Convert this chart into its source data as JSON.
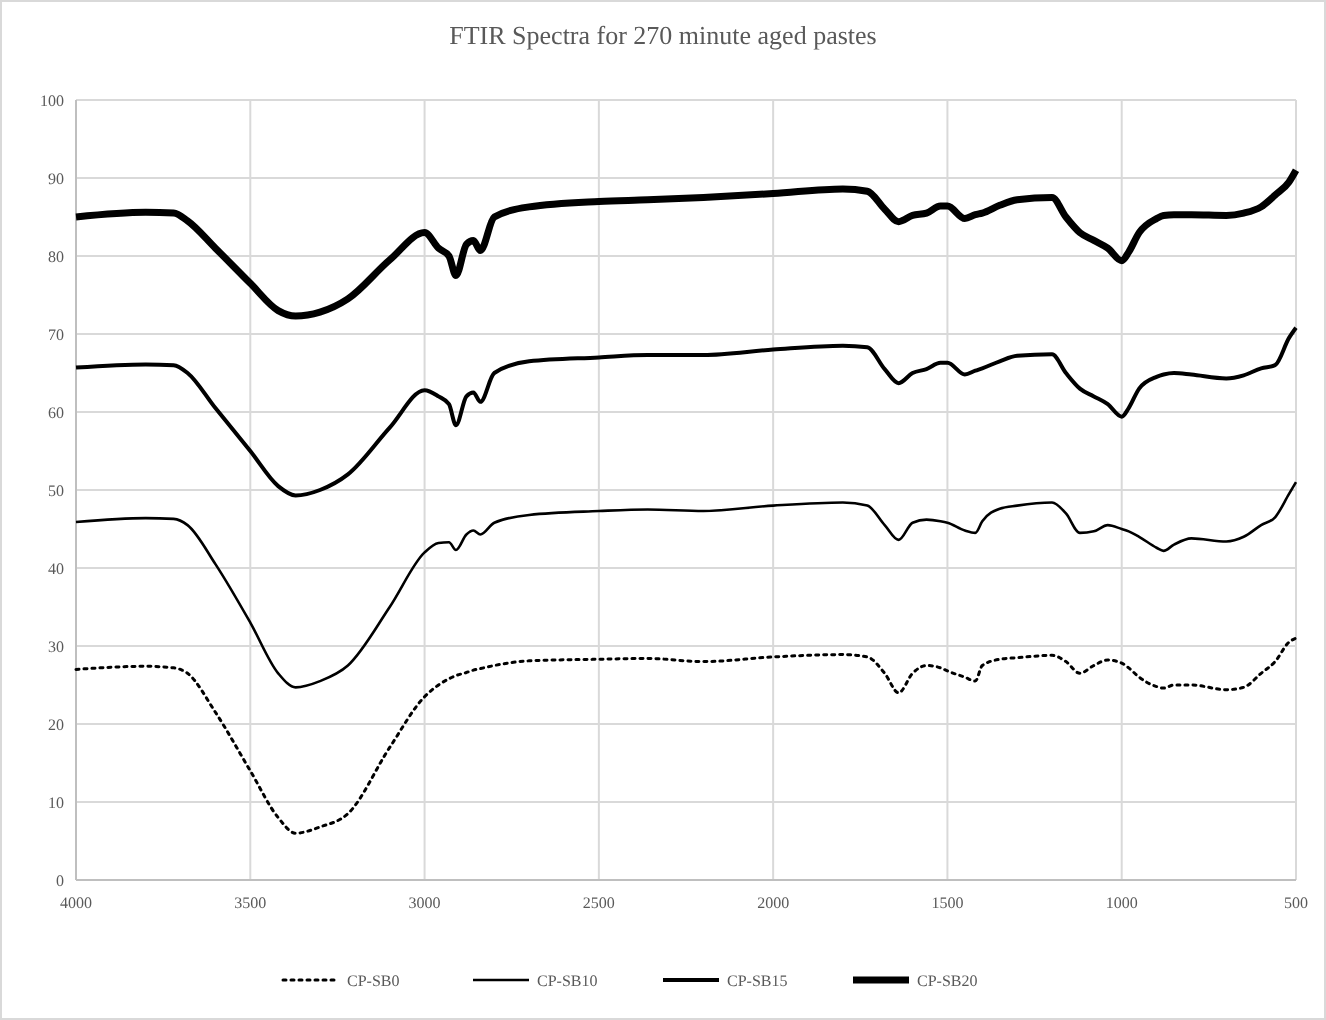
{
  "chart_data": {
    "type": "line",
    "title": "FTIR Spectra for 270 minute aged pastes",
    "x": [
      4000,
      3800,
      3720,
      3680,
      3600,
      3500,
      3420,
      3370,
      3300,
      3220,
      3100,
      3000,
      2960,
      2930,
      2910,
      2880,
      2860,
      2840,
      2800,
      2700,
      2500,
      2360,
      2200,
      2000,
      1800,
      1730,
      1680,
      1640,
      1600,
      1560,
      1520,
      1500,
      1450,
      1420,
      1400,
      1350,
      1300,
      1200,
      1160,
      1120,
      1080,
      1040,
      1000,
      980,
      950,
      900,
      880,
      850,
      800,
      700,
      650,
      600,
      560,
      520,
      500
    ],
    "series": [
      {
        "name": "CP-SB0",
        "color": "#000000",
        "line_style": "dotted",
        "values": [
          27,
          27.4,
          27.2,
          26.5,
          21.5,
          14,
          8,
          6,
          6.8,
          8.5,
          17,
          23.5,
          25,
          25.8,
          26.2,
          26.6,
          26.9,
          27.1,
          27.5,
          28.1,
          28.3,
          28.4,
          28,
          28.6,
          28.9,
          28.6,
          26.5,
          24,
          26.5,
          27.5,
          27.2,
          26.8,
          26,
          25.5,
          27.5,
          28.3,
          28.5,
          28.8,
          28,
          26.5,
          27.5,
          28.2,
          27.8,
          27.2,
          26,
          24.8,
          24.6,
          25,
          25,
          24.4,
          24.7,
          26.5,
          28,
          30.5,
          31
        ]
      },
      {
        "name": "CP-SB10",
        "color": "#000000",
        "line_style": "solid",
        "values": [
          45.9,
          46.4,
          46.3,
          45.5,
          40.5,
          33,
          26.5,
          24.7,
          25.5,
          27.5,
          35,
          42,
          43.2,
          43.3,
          42.3,
          44.3,
          44.8,
          44.3,
          45.8,
          46.8,
          47.3,
          47.5,
          47.3,
          48,
          48.4,
          48,
          45.5,
          43.6,
          45.8,
          46.2,
          46,
          45.8,
          44.8,
          44.5,
          46,
          47.6,
          48,
          48.4,
          47,
          44.5,
          44.7,
          45.5,
          45,
          44.7,
          44,
          42.6,
          42.2,
          43,
          43.8,
          43.4,
          44,
          45.5,
          46.5,
          49.5,
          51
        ]
      },
      {
        "name": "CP-SB15",
        "color": "#000000",
        "line_style": "solid",
        "values": [
          65.7,
          66.1,
          66,
          65,
          60.5,
          55,
          50.5,
          49.3,
          50,
          52,
          58,
          62.8,
          62,
          61,
          58.3,
          62,
          62.5,
          61.3,
          65,
          66.5,
          67,
          67.3,
          67.3,
          68,
          68.5,
          68.3,
          65.5,
          63.7,
          65,
          65.5,
          66.3,
          66.3,
          64.8,
          65.3,
          65.6,
          66.5,
          67.2,
          67.4,
          65,
          63,
          62,
          61,
          59.4,
          60.5,
          63,
          64.5,
          64.8,
          65,
          64.8,
          64.3,
          64.7,
          65.6,
          66,
          69.5,
          70.8
        ]
      },
      {
        "name": "CP-SB20",
        "color": "#000000",
        "line_style": "solid",
        "values": [
          85,
          85.6,
          85.5,
          84.5,
          81,
          76.5,
          73,
          72.3,
          72.8,
          74.5,
          79.5,
          83,
          81,
          80,
          77.5,
          81.5,
          82,
          80.7,
          85,
          86.3,
          87,
          87.2,
          87.5,
          88,
          88.6,
          88.3,
          86,
          84.4,
          85.2,
          85.5,
          86.4,
          86.4,
          84.8,
          85.3,
          85.5,
          86.5,
          87.2,
          87.5,
          85,
          83,
          82,
          81,
          79.4,
          80.5,
          83,
          84.8,
          85.2,
          85.3,
          85.3,
          85.2,
          85.5,
          86.3,
          87.8,
          89.5,
          91
        ]
      }
    ],
    "xlim": [
      4000,
      500
    ],
    "xticks": [
      4000,
      3500,
      3000,
      2500,
      2000,
      1500,
      1000,
      500
    ],
    "ylim": [
      0,
      100
    ],
    "yticks": [
      0,
      10,
      20,
      30,
      40,
      50,
      60,
      70,
      80,
      90,
      100
    ],
    "grid": true,
    "legend": "bottom"
  }
}
